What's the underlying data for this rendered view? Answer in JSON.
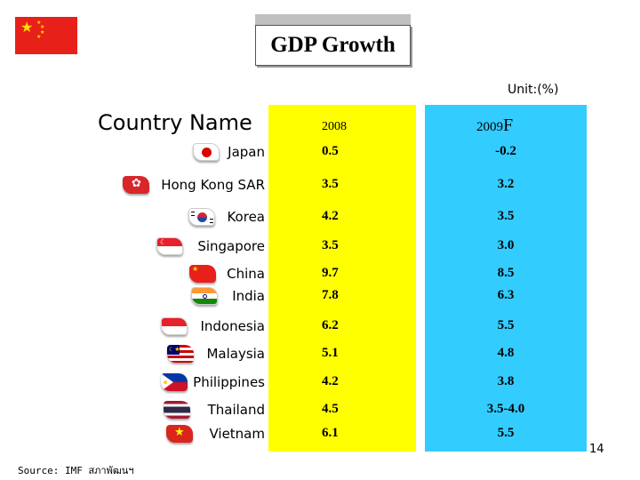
{
  "title": "GDP Growth",
  "unit": "Unit:(%)",
  "headers": {
    "country": "Country Name",
    "year1": "2008",
    "year2_num": "2009",
    "year2_suffix": "F"
  },
  "rows": [
    {
      "country": "Japan",
      "v2008": "0.5",
      "v2009": "-0.2"
    },
    {
      "country": "Hong Kong SAR",
      "v2008": "3.5",
      "v2009": "3.2"
    },
    {
      "country": "Korea",
      "v2008": "4.2",
      "v2009": "3.5"
    },
    {
      "country": "Singapore",
      "v2008": "3.5",
      "v2009": "3.0"
    },
    {
      "country": "China",
      "v2008": "9.7",
      "v2009": "8.5"
    },
    {
      "country": "India",
      "v2008": "7.8",
      "v2009": "6.3"
    },
    {
      "country": "Indonesia",
      "v2008": "6.2",
      "v2009": "5.5"
    },
    {
      "country": "Malaysia",
      "v2008": "5.1",
      "v2009": "4.8"
    },
    {
      "country": "Philippines",
      "v2008": "4.2",
      "v2009": "3.8"
    },
    {
      "country": "Thailand",
      "v2008": "4.5",
      "v2009": "3.5-4.0"
    },
    {
      "country": "Vietnam",
      "v2008": "6.1",
      "v2009": "5.5"
    }
  ],
  "page_number": "14",
  "source": "Source: IMF สภาพัฒนฯ",
  "colors": {
    "year1_column": "#ffff00",
    "year2_column": "#33ccff",
    "china_flag": "#e8201a"
  }
}
